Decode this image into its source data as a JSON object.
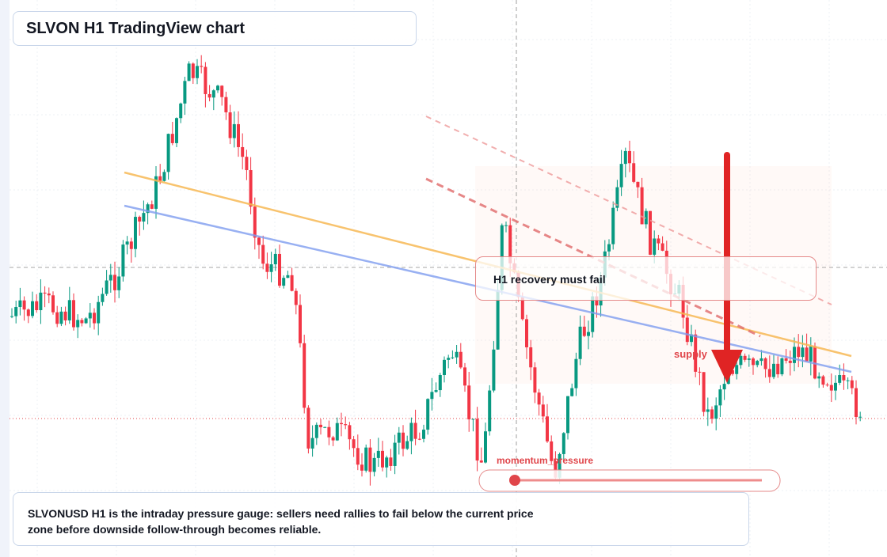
{
  "header": {
    "title": "SLVON H1 TradingView chart"
  },
  "annotations": {
    "callout": "H1 recovery must fail",
    "zone_label": "supply",
    "gauge_label": "momentum_pressure"
  },
  "caption": "SLVONUSD H1 is the intraday pressure gauge: sellers need rallies to fail below the current price zone before downside follow-through becomes reliable."
}
